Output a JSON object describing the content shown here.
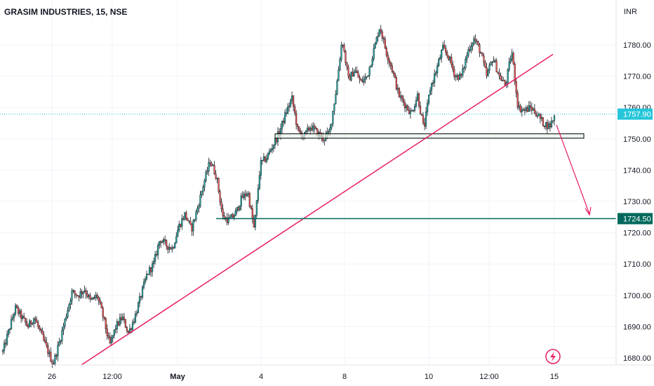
{
  "header": {
    "symbol_title": "GRASIM INDUSTRIES, 15, NSE",
    "currency": "INR"
  },
  "colors": {
    "up": "#26a69a",
    "down": "#ef5350",
    "trendline": "#e91e63",
    "support_zone": "#000000",
    "support_fill": "#e8f5e9",
    "target_line": "#00695c",
    "last_price_badge": "#26c6da",
    "target_badge": "#00695c",
    "grid": "#f0f3fa"
  },
  "chart_data": {
    "type": "candlestick",
    "title": "GRASIM INDUSTRIES, 15, NSE",
    "y_axis_unit": "INR",
    "ylim": [
      1677,
      1791
    ],
    "y_ticks": [
      1680,
      1690,
      1700,
      1710,
      1720,
      1730,
      1740,
      1750,
      1760,
      1770,
      1780
    ],
    "x_ticks": [
      "26",
      "12:00",
      "May",
      "4",
      "8",
      "10",
      "12:00",
      "15"
    ],
    "grid": true,
    "last_price": 1757.9,
    "last_price_label": "1757.90",
    "target_price": 1724.5,
    "target_price_label": "1724.50",
    "support_zone": [
      1750.2,
      1751.6
    ],
    "price_path": [
      [
        1682,
        1689
      ],
      [
        1689,
        1696
      ],
      [
        1696,
        1693
      ],
      [
        1693,
        1690
      ],
      [
        1690,
        1693
      ],
      [
        1693,
        1688
      ],
      [
        1688,
        1683
      ],
      [
        1683,
        1678
      ],
      [
        1678,
        1685
      ],
      [
        1685,
        1693
      ],
      [
        1693,
        1701
      ],
      [
        1701,
        1700
      ],
      [
        1700,
        1702
      ],
      [
        1702,
        1698
      ],
      [
        1698,
        1700
      ],
      [
        1700,
        1693
      ],
      [
        1693,
        1684
      ],
      [
        1684,
        1690
      ],
      [
        1690,
        1693
      ],
      [
        1693,
        1688
      ],
      [
        1688,
        1693
      ],
      [
        1693,
        1700
      ],
      [
        1700,
        1707
      ],
      [
        1707,
        1710
      ],
      [
        1710,
        1718
      ],
      [
        1718,
        1716
      ],
      [
        1716,
        1715
      ],
      [
        1715,
        1722
      ],
      [
        1722,
        1726
      ],
      [
        1726,
        1721
      ],
      [
        1721,
        1728
      ],
      [
        1728,
        1736
      ],
      [
        1736,
        1743
      ],
      [
        1743,
        1738
      ],
      [
        1738,
        1725
      ],
      [
        1725,
        1724
      ],
      [
        1724,
        1726
      ],
      [
        1726,
        1731
      ],
      [
        1731,
        1733
      ],
      [
        1733,
        1721
      ],
      [
        1721,
        1742
      ],
      [
        1742,
        1744
      ],
      [
        1744,
        1748
      ],
      [
        1748,
        1752
      ],
      [
        1752,
        1758
      ],
      [
        1758,
        1763
      ],
      [
        1763,
        1752
      ],
      [
        1752,
        1751
      ],
      [
        1751,
        1754
      ],
      [
        1754,
        1752
      ],
      [
        1752,
        1750
      ],
      [
        1750,
        1752
      ],
      [
        1752,
        1765
      ],
      [
        1765,
        1782
      ],
      [
        1782,
        1769
      ],
      [
        1769,
        1772
      ],
      [
        1772,
        1768
      ],
      [
        1768,
        1770
      ],
      [
        1770,
        1778
      ],
      [
        1778,
        1786
      ],
      [
        1786,
        1778
      ],
      [
        1778,
        1772
      ],
      [
        1772,
        1764
      ],
      [
        1764,
        1761
      ],
      [
        1761,
        1758
      ],
      [
        1758,
        1764
      ],
      [
        1764,
        1753
      ],
      [
        1753,
        1766
      ],
      [
        1766,
        1772
      ],
      [
        1772,
        1779
      ],
      [
        1779,
        1776
      ],
      [
        1776,
        1770
      ],
      [
        1770,
        1770
      ],
      [
        1770,
        1778
      ],
      [
        1778,
        1782
      ],
      [
        1782,
        1778
      ],
      [
        1778,
        1770
      ],
      [
        1770,
        1776
      ],
      [
        1776,
        1770
      ],
      [
        1770,
        1767
      ],
      [
        1767,
        1778
      ],
      [
        1778,
        1760
      ],
      [
        1760,
        1759
      ],
      [
        1759,
        1760
      ],
      [
        1760,
        1758
      ],
      [
        1758,
        1755
      ],
      [
        1755,
        1754
      ],
      [
        1754,
        1758
      ]
    ]
  }
}
